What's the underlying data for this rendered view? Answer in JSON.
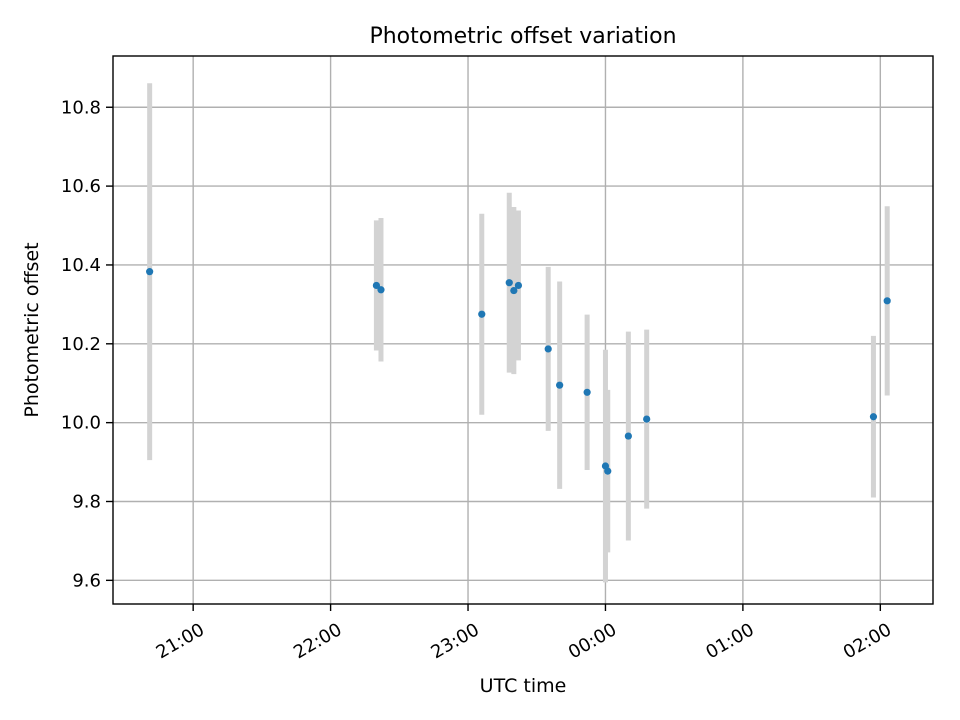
{
  "chart_data": {
    "type": "scatter",
    "title": "Photometric offset variation",
    "xlabel": "UTC time",
    "ylabel": "Photometric offset",
    "x_axis_type": "time",
    "xlim": [
      "20:25",
      "02:23"
    ],
    "ylim": [
      9.54,
      10.93
    ],
    "grid": true,
    "x_ticks": [
      "21:00",
      "22:00",
      "23:00",
      "00:00",
      "01:00",
      "02:00"
    ],
    "y_ticks": [
      "9.6",
      "9.8",
      "10.0",
      "10.2",
      "10.4",
      "10.6",
      "10.8"
    ],
    "point_color": "#1f77b4",
    "errorbar_color": "#d3d3d3",
    "series": [
      {
        "points": [
          {
            "x": "20:41",
            "y": 10.383,
            "yerr": 0.478
          },
          {
            "x": "22:20",
            "y": 10.348,
            "yerr": 0.165
          },
          {
            "x": "22:22",
            "y": 10.337,
            "yerr": 0.182
          },
          {
            "x": "23:06",
            "y": 10.275,
            "yerr": 0.255
          },
          {
            "x": "23:18",
            "y": 10.355,
            "yerr": 0.228
          },
          {
            "x": "23:20",
            "y": 10.335,
            "yerr": 0.212
          },
          {
            "x": "23:22",
            "y": 10.348,
            "yerr": 0.19
          },
          {
            "x": "23:35",
            "y": 10.187,
            "yerr": 0.208
          },
          {
            "x": "23:40",
            "y": 10.095,
            "yerr": 0.263
          },
          {
            "x": "23:52",
            "y": 10.077,
            "yerr": 0.197
          },
          {
            "x": "00:00",
            "y": 9.89,
            "yerr": 0.295
          },
          {
            "x": "00:01",
            "y": 9.877,
            "yerr": 0.206
          },
          {
            "x": "00:10",
            "y": 9.966,
            "yerr": 0.265
          },
          {
            "x": "00:18",
            "y": 10.009,
            "yerr": 0.227
          },
          {
            "x": "01:57",
            "y": 10.015,
            "yerr": 0.205
          },
          {
            "x": "02:03",
            "y": 10.309,
            "yerr": 0.24
          }
        ]
      }
    ]
  }
}
